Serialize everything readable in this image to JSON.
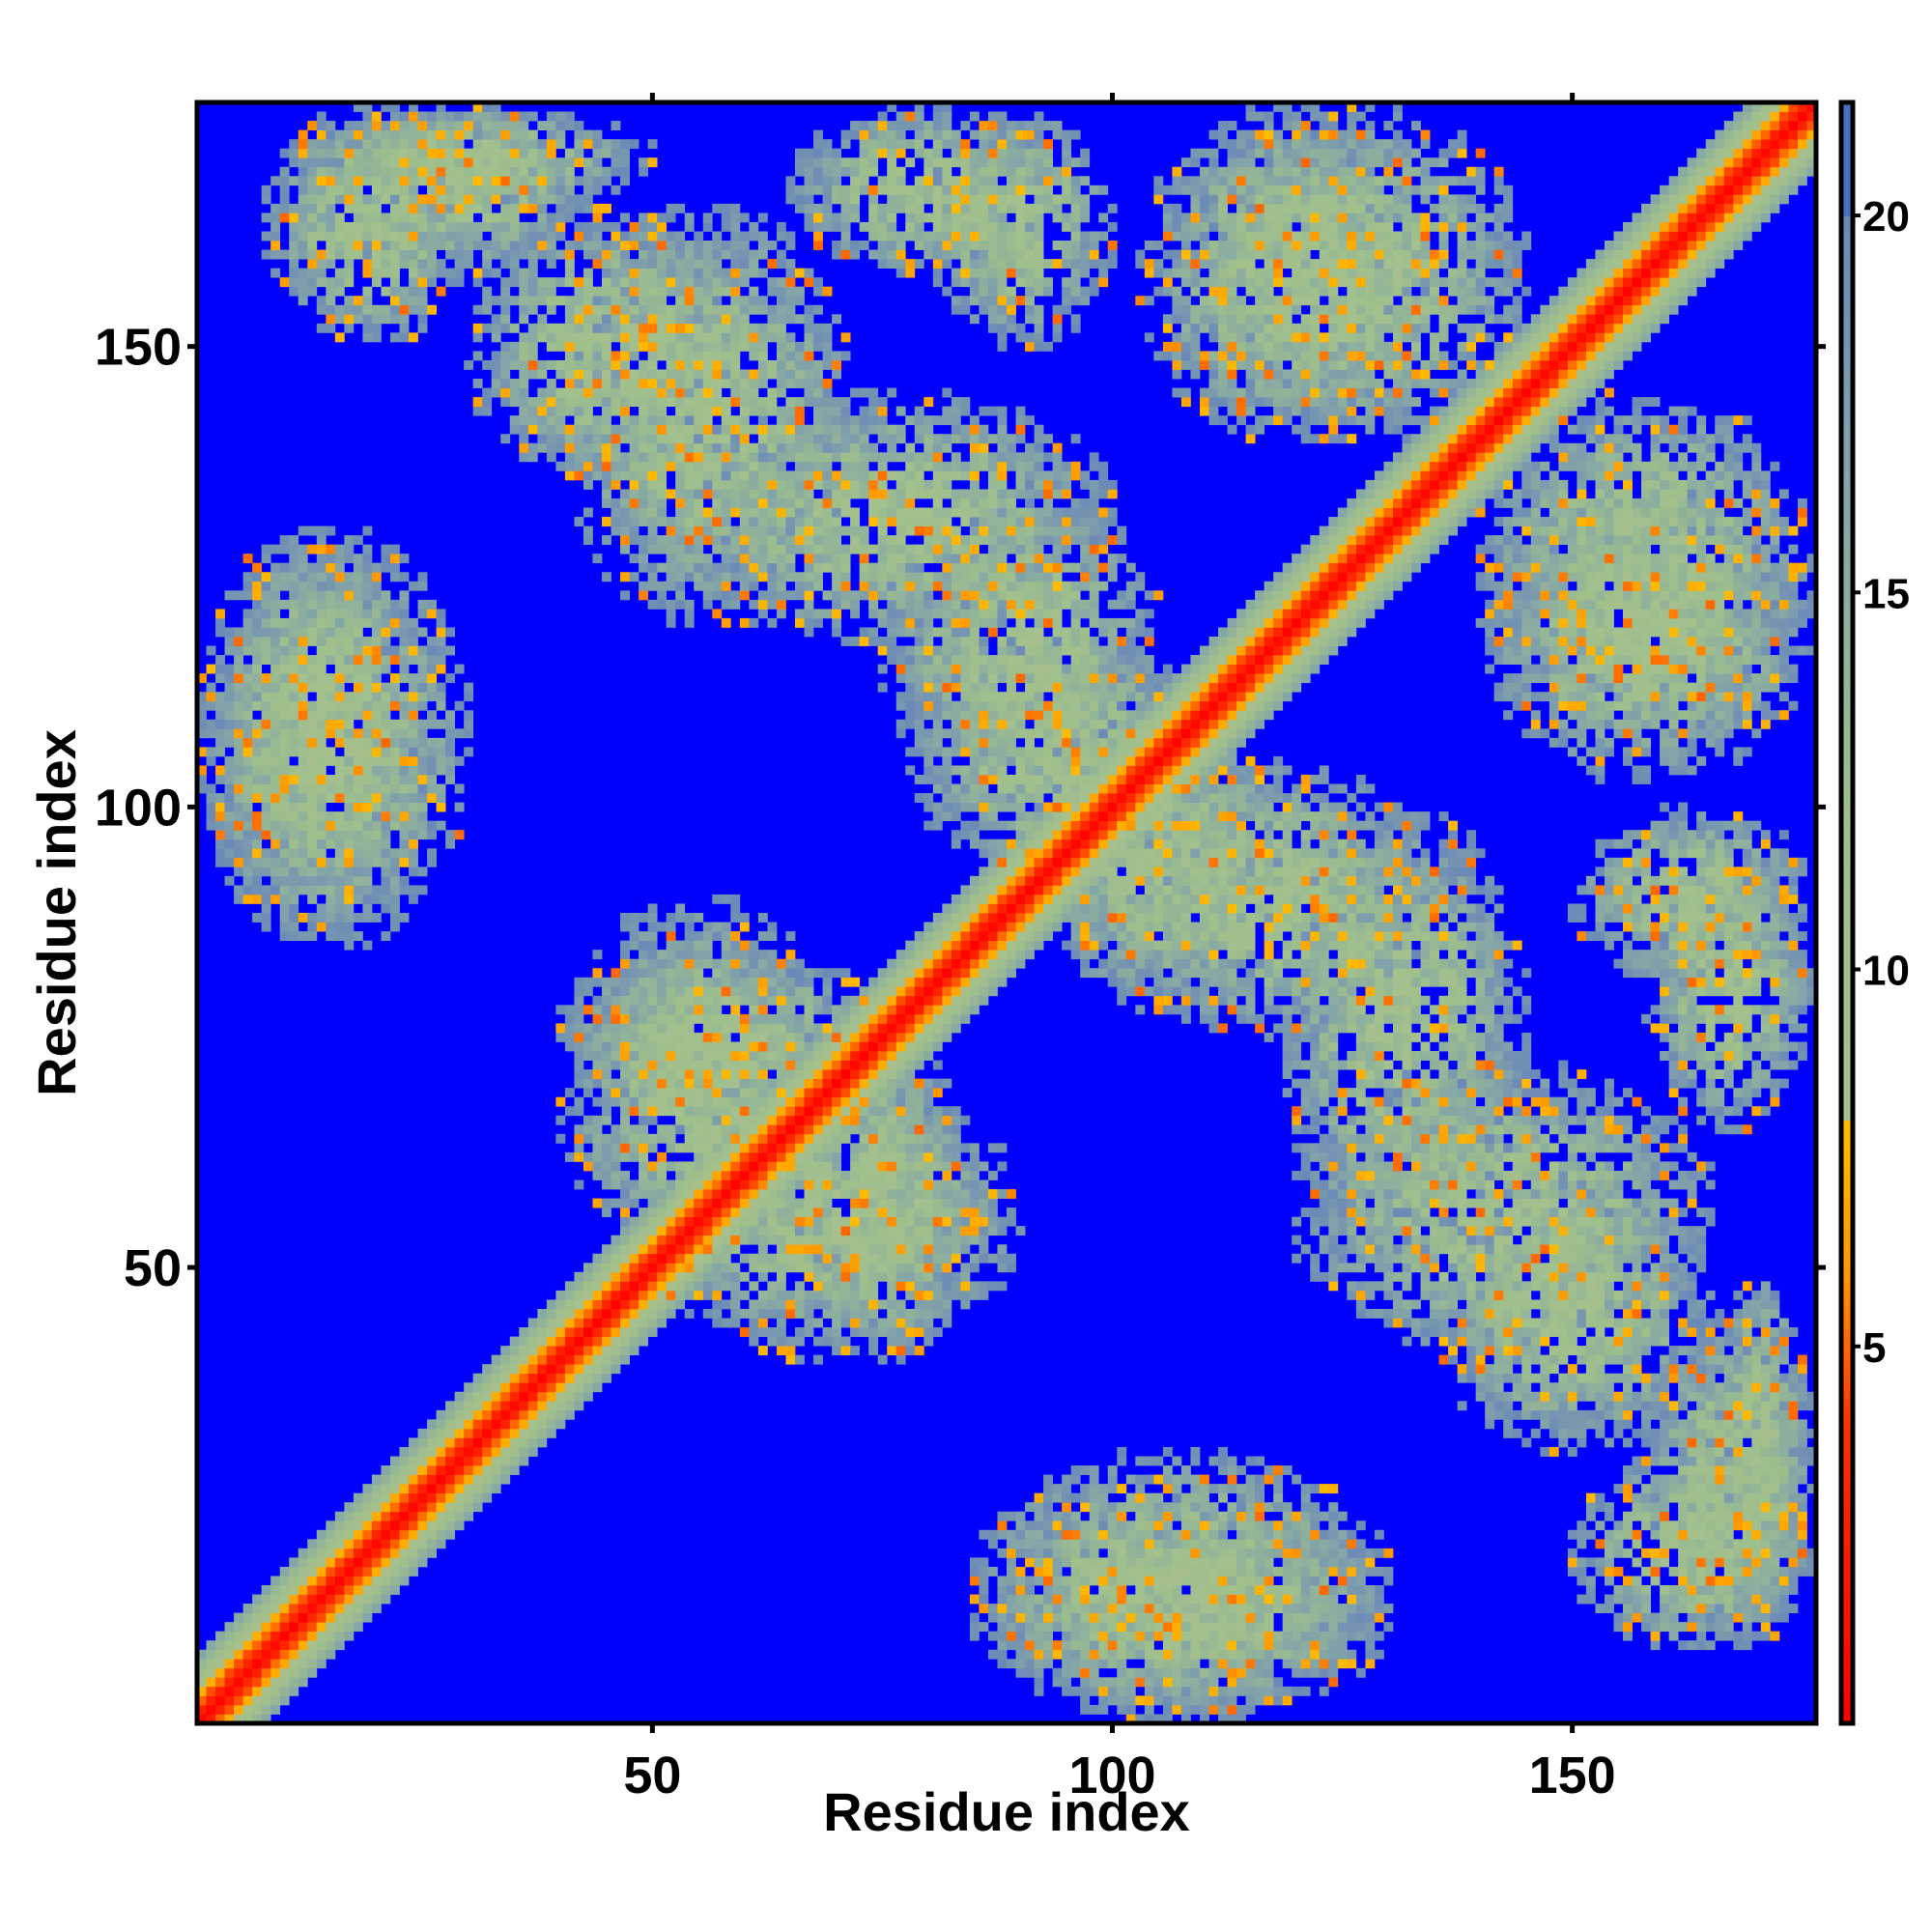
{
  "chart_data": {
    "type": "heatmap",
    "title": "",
    "xlabel": "Residue index",
    "ylabel": "Residue index",
    "xlim": [
      1,
      176
    ],
    "ylim": [
      1,
      176
    ],
    "n_residues": 176,
    "x_ticks": [
      50,
      100,
      150
    ],
    "y_ticks": [
      50,
      100,
      150
    ],
    "colorbar": {
      "ticks": [
        5,
        10,
        15,
        20
      ],
      "range": [
        0,
        21.5
      ],
      "stops": [
        {
          "value": 0,
          "color": "#ff0000"
        },
        {
          "value": 4,
          "color": "#ff3300"
        },
        {
          "value": 6,
          "color": "#ff9900"
        },
        {
          "value": 8,
          "color": "#ffbb00"
        },
        {
          "value": 8.01,
          "color": "#a9c18e"
        },
        {
          "value": 12,
          "color": "#9fbf8c"
        },
        {
          "value": 16,
          "color": "#86a7a6"
        },
        {
          "value": 20,
          "color": "#6b89b8"
        },
        {
          "value": 21.5,
          "color": "#4a70c6"
        }
      ]
    },
    "background_color": "#0000ff",
    "cutoff": 20,
    "diagonal_band_width": 7,
    "contact_regions": [
      {
        "x": [
          10,
          45
        ],
        "y": [
          158,
          176
        ]
      },
      {
        "x": [
          30,
          60
        ],
        "y": [
          135,
          165
        ]
      },
      {
        "x": [
          52,
          100
        ],
        "y": [
          118,
          145
        ]
      },
      {
        "x": [
          65,
          95
        ],
        "y": [
          158,
          176
        ]
      },
      {
        "x": [
          103,
          135
        ],
        "y": [
          140,
          176
        ]
      },
      {
        "x": [
          1,
          25
        ],
        "y": [
          85,
          130
        ]
      },
      {
        "x": [
          78,
          110
        ],
        "y": [
          92,
          120
        ]
      },
      {
        "x": [
          40,
          75
        ],
        "y": [
          65,
          85
        ]
      },
      {
        "x": [
          50,
          90
        ],
        "y": [
          40,
          70
        ]
      },
      {
        "x": [
          100,
          135
        ],
        "y": [
          75,
          105
        ]
      },
      {
        "x": [
          120,
          165
        ],
        "y": [
          40,
          72
        ]
      },
      {
        "x": [
          150,
          176
        ],
        "y": [
          80,
          100
        ]
      },
      {
        "x": [
          140,
          176
        ],
        "y": [
          108,
          145
        ]
      },
      {
        "x": [
          165,
          176
        ],
        "y": [
          10,
          50
        ]
      },
      {
        "x": [
          85,
          130
        ],
        "y": [
          1,
          30
        ]
      },
      {
        "x": [
          150,
          176
        ],
        "y": [
          8,
          30
        ]
      }
    ]
  }
}
